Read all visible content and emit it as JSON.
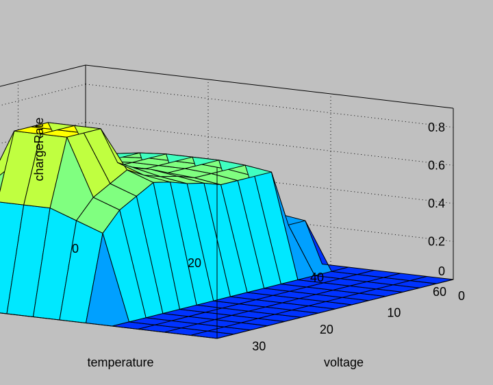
{
  "chart_data": {
    "type": "surface",
    "title": "",
    "xlabel": "voltage",
    "ylabel": "temperature",
    "zlabel": "chargeRate",
    "x_ticks": [
      "0",
      "10",
      "20",
      "30"
    ],
    "y_ticks": [
      "0",
      "20",
      "40",
      "60"
    ],
    "z_ticks": [
      "0",
      "0.2",
      "0.4",
      "0.6",
      "0.8"
    ],
    "xlim": [
      0,
      35
    ],
    "ylim": [
      0,
      60
    ],
    "zlim": [
      0,
      0.9
    ],
    "grid": true,
    "colormap": [
      "#0033ff",
      "#00a0ff",
      "#00e8ff",
      "#40ffc0",
      "#80ff80",
      "#c0ff40",
      "#ffff00"
    ],
    "x": [
      0,
      2.5,
      5,
      7.5,
      10,
      12.5,
      15,
      17.5,
      20,
      22.5,
      25,
      27.5,
      30,
      32.5,
      35
    ],
    "y": [
      0,
      4.3,
      8.6,
      12.9,
      17.1,
      21.4,
      25.7,
      30,
      34.3,
      38.6,
      42.9,
      47.1,
      51.4,
      55.7,
      60
    ],
    "z": [
      [
        0.0,
        0.0,
        0.0,
        0.0,
        0.0,
        0.0,
        0.0,
        0.0,
        0.0,
        0.0,
        0.0,
        0.0,
        0.0,
        0.0,
        0.0
      ],
      [
        0.0,
        0.0,
        0.0,
        0.0,
        0.0,
        0.0,
        0.0,
        0.0,
        0.0,
        0.0,
        0.0,
        0.0,
        0.0,
        0.0,
        0.0
      ],
      [
        0.0,
        0.0,
        0.0,
        0.0,
        0.0,
        0.0,
        0.0,
        0.0,
        0.0,
        0.0,
        0.0,
        0.0,
        0.0,
        0.0,
        0.0
      ],
      [
        0.0,
        0.25,
        0.25,
        0.55,
        0.55,
        0.55,
        0.55,
        0.58,
        0.6,
        0.63,
        0.65,
        0.6,
        0.55,
        0.45,
        0.0
      ],
      [
        0.0,
        0.27,
        0.27,
        0.57,
        0.57,
        0.57,
        0.57,
        0.6,
        0.62,
        0.65,
        0.7,
        0.65,
        0.6,
        0.5,
        0.0
      ],
      [
        0.0,
        0.28,
        0.28,
        0.58,
        0.58,
        0.58,
        0.58,
        0.62,
        0.65,
        0.7,
        0.9,
        0.9,
        0.9,
        0.55,
        0.0
      ],
      [
        0.0,
        0.28,
        0.28,
        0.58,
        0.58,
        0.58,
        0.58,
        0.62,
        0.65,
        0.7,
        0.9,
        0.9,
        0.9,
        0.55,
        0.0
      ],
      [
        0.0,
        0.28,
        0.28,
        0.58,
        0.58,
        0.58,
        0.58,
        0.62,
        0.65,
        0.7,
        0.9,
        0.9,
        0.9,
        0.55,
        0.0
      ],
      [
        0.0,
        0.27,
        0.27,
        0.57,
        0.57,
        0.57,
        0.57,
        0.6,
        0.62,
        0.65,
        0.7,
        0.65,
        0.6,
        0.5,
        0.0
      ],
      [
        0.0,
        0.25,
        0.25,
        0.55,
        0.55,
        0.55,
        0.55,
        0.58,
        0.6,
        0.63,
        0.65,
        0.6,
        0.55,
        0.45,
        0.0
      ],
      [
        0.0,
        0.0,
        0.0,
        0.0,
        0.0,
        0.0,
        0.0,
        0.0,
        0.0,
        0.0,
        0.0,
        0.0,
        0.0,
        0.0,
        0.0
      ],
      [
        0.0,
        0.0,
        0.0,
        0.0,
        0.0,
        0.0,
        0.0,
        0.0,
        0.0,
        0.0,
        0.0,
        0.0,
        0.0,
        0.0,
        0.0
      ],
      [
        0.0,
        0.0,
        0.0,
        0.0,
        0.0,
        0.0,
        0.0,
        0.0,
        0.0,
        0.0,
        0.0,
        0.0,
        0.0,
        0.0,
        0.0
      ],
      [
        0.0,
        0.0,
        0.0,
        0.0,
        0.0,
        0.0,
        0.0,
        0.0,
        0.0,
        0.0,
        0.0,
        0.0,
        0.0,
        0.0,
        0.0
      ],
      [
        0.0,
        0.0,
        0.0,
        0.0,
        0.0,
        0.0,
        0.0,
        0.0,
        0.0,
        0.0,
        0.0,
        0.0,
        0.0,
        0.0,
        0.0
      ]
    ]
  }
}
